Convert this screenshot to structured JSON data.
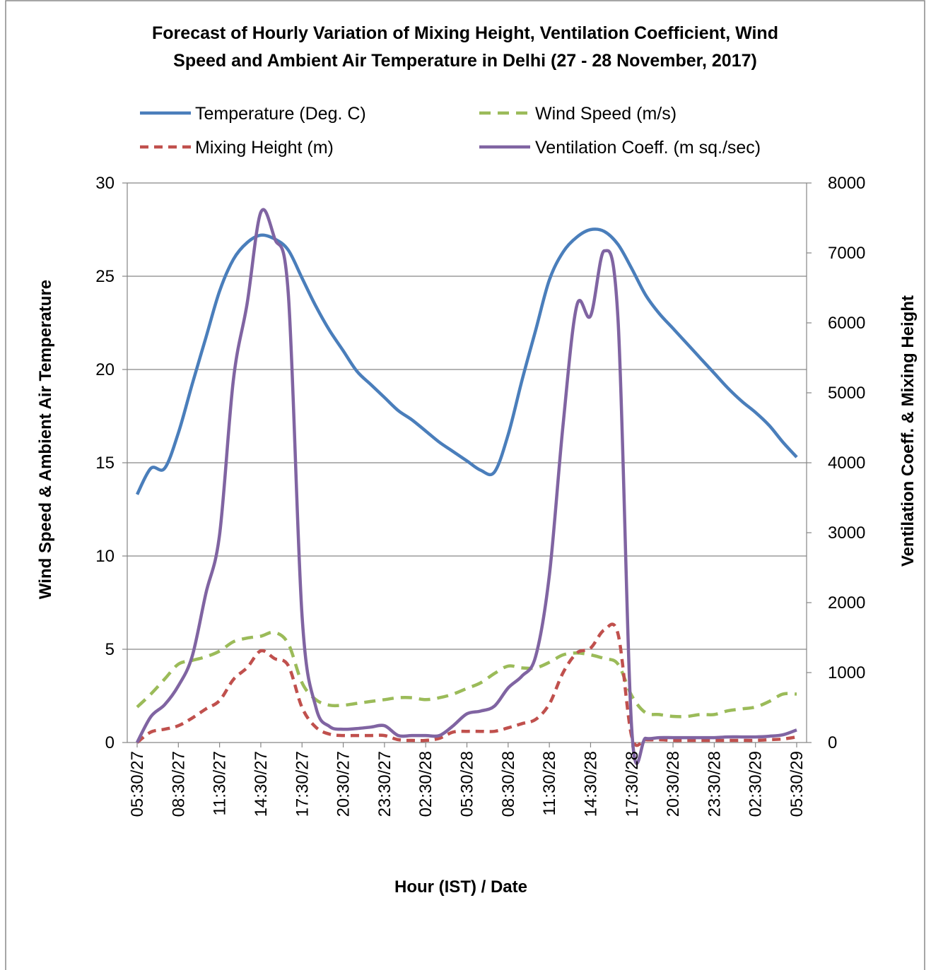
{
  "chart_data": {
    "type": "line",
    "title_lines": [
      "Forecast of Hourly Variation of Mixing Height, Ventilation Coefficient, Wind",
      "Speed and Ambient Air Temperature in Delhi (27 - 28 November, 2017)"
    ],
    "xlabel": "Hour (IST) / Date",
    "ylabel_left": "Wind Speed & Ambient Air Temperature",
    "ylabel_right": "Ventilation Coeff. & Mixing Height",
    "ylim_left": [
      0,
      30
    ],
    "ylim_right": [
      0,
      8000
    ],
    "yticks_left": [
      "0",
      "5",
      "10",
      "15",
      "20",
      "25",
      "30"
    ],
    "yticks_right": [
      "0",
      "1000",
      "2000",
      "3000",
      "4000",
      "5000",
      "6000",
      "7000",
      "8000"
    ],
    "x_tick_labels": [
      "05:30/27",
      "08:30/27",
      "11:30/27",
      "14:30/27",
      "17:30/27",
      "20:30/27",
      "23:30/27",
      "02:30/28",
      "05:30/28",
      "08:30/28",
      "11:30/28",
      "14:30/28",
      "17:30/28",
      "20:30/28",
      "23:30/28",
      "02:30/29",
      "05:30/29"
    ],
    "x_hours": [
      0,
      1,
      2,
      3,
      4,
      5,
      6,
      7,
      8,
      9,
      10,
      11,
      12,
      13,
      14,
      15,
      16,
      17,
      18,
      19,
      20,
      21,
      22,
      23,
      24,
      25,
      26,
      27,
      28,
      29,
      30,
      31,
      32,
      33,
      34,
      35,
      36,
      37,
      38,
      39,
      40,
      41,
      42,
      43,
      44,
      45,
      46,
      47,
      48
    ],
    "grid": true,
    "legend_position": "top",
    "series": [
      {
        "name": "Temperature (Deg. C)",
        "axis": "left",
        "color": "#4a7ebb",
        "dash": "solid",
        "values": [
          13.3,
          14.7,
          14.7,
          16.6,
          19.2,
          21.7,
          24.2,
          25.9,
          26.8,
          27.2,
          27.0,
          26.4,
          24.9,
          23.4,
          22.1,
          21.0,
          19.9,
          19.2,
          18.5,
          17.8,
          17.3,
          16.7,
          16.1,
          15.6,
          15.1,
          14.6,
          14.5,
          16.5,
          19.4,
          22.1,
          24.8,
          26.3,
          27.1,
          27.5,
          27.4,
          26.7,
          25.4,
          24.0,
          23.0,
          22.2,
          21.4,
          20.6,
          19.8,
          19.0,
          18.3,
          17.7,
          17.0,
          16.1,
          15.3
        ]
      },
      {
        "name": "Wind Speed (m/s)",
        "axis": "left",
        "color": "#9bbb59",
        "dash": "dashed",
        "values": [
          1.9,
          2.6,
          3.4,
          4.2,
          4.4,
          4.6,
          4.9,
          5.4,
          5.6,
          5.7,
          5.9,
          5.3,
          3.2,
          2.3,
          2.0,
          2.0,
          2.1,
          2.2,
          2.3,
          2.4,
          2.4,
          2.3,
          2.4,
          2.6,
          2.9,
          3.2,
          3.7,
          4.1,
          4.0,
          4.0,
          4.3,
          4.7,
          4.8,
          4.7,
          4.5,
          4.2,
          2.5,
          1.6,
          1.5,
          1.4,
          1.4,
          1.5,
          1.5,
          1.7,
          1.8,
          1.9,
          2.2,
          2.6,
          2.6
        ]
      },
      {
        "name": "Mixing Height (m)",
        "axis": "right",
        "color": "#c0504d",
        "dash": "dashed",
        "values": [
          0,
          150,
          190,
          240,
          350,
          480,
          600,
          900,
          1070,
          1310,
          1200,
          1100,
          500,
          220,
          120,
          100,
          100,
          100,
          100,
          40,
          30,
          30,
          60,
          150,
          160,
          160,
          160,
          210,
          270,
          330,
          550,
          1000,
          1280,
          1350,
          1610,
          1550,
          80,
          40,
          40,
          30,
          30,
          30,
          30,
          30,
          30,
          30,
          40,
          50,
          80
        ]
      },
      {
        "name": "Ventilation Coeff. (m sq./sec)",
        "axis": "right",
        "color": "#8064a2",
        "dash": "solid",
        "values": [
          0,
          370,
          540,
          810,
          1230,
          2130,
          2970,
          5180,
          6270,
          7580,
          7210,
          6420,
          1810,
          510,
          230,
          190,
          200,
          220,
          240,
          100,
          100,
          100,
          100,
          240,
          410,
          450,
          520,
          780,
          950,
          1230,
          2390,
          4550,
          6250,
          6100,
          7030,
          6040,
          170,
          60,
          70,
          70,
          70,
          70,
          70,
          80,
          80,
          80,
          90,
          110,
          180
        ]
      }
    ]
  }
}
